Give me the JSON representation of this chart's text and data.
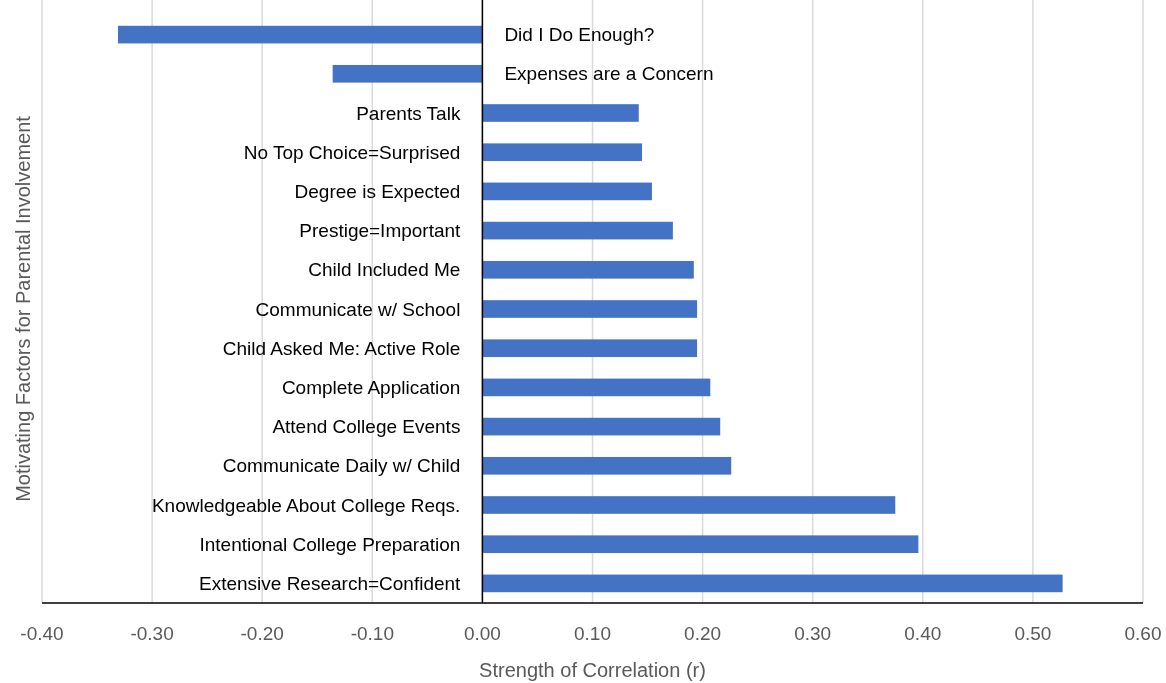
{
  "chart_data": {
    "type": "bar",
    "orientation": "horizontal",
    "xlabel": "Strength of Correlation (r)",
    "ylabel": "Motivating Factors for Parental Involvement",
    "categories": [
      "Did I Do Enough?",
      "Expenses are a Concern",
      "Parents Talk",
      "No Top Choice=Surprised",
      "Degree is Expected",
      "Prestige=Important",
      "Child Included Me",
      "Communicate w/ School",
      "Child Asked Me: Active Role",
      "Complete Application",
      "Attend College Events",
      "Communicate Daily w/ Child",
      "Knowledgeable About College Reqs.",
      "Intentional College Preparation",
      "Extensive Research=Confident"
    ],
    "values": [
      -0.331,
      -0.136,
      0.142,
      0.145,
      0.154,
      0.173,
      0.192,
      0.195,
      0.195,
      0.207,
      0.216,
      0.226,
      0.375,
      0.396,
      0.527
    ],
    "color": "#4472c4",
    "xlim": [
      -0.4,
      0.6
    ],
    "xticks": [
      {
        "value": -0.4,
        "label": "-0.40"
      },
      {
        "value": -0.3,
        "label": "-0.30"
      },
      {
        "value": -0.2,
        "label": "-0.20"
      },
      {
        "value": -0.1,
        "label": "-0.10"
      },
      {
        "value": 0,
        "label": "0.00"
      },
      {
        "value": 0.1,
        "label": "0.10"
      },
      {
        "value": 0.2,
        "label": "0.20"
      },
      {
        "value": 0.3,
        "label": "0.30"
      },
      {
        "value": 0.4,
        "label": "0.40"
      },
      {
        "value": 0.5,
        "label": "0.50"
      },
      {
        "value": 0.6,
        "label": "0.60"
      }
    ],
    "grid": "x"
  }
}
